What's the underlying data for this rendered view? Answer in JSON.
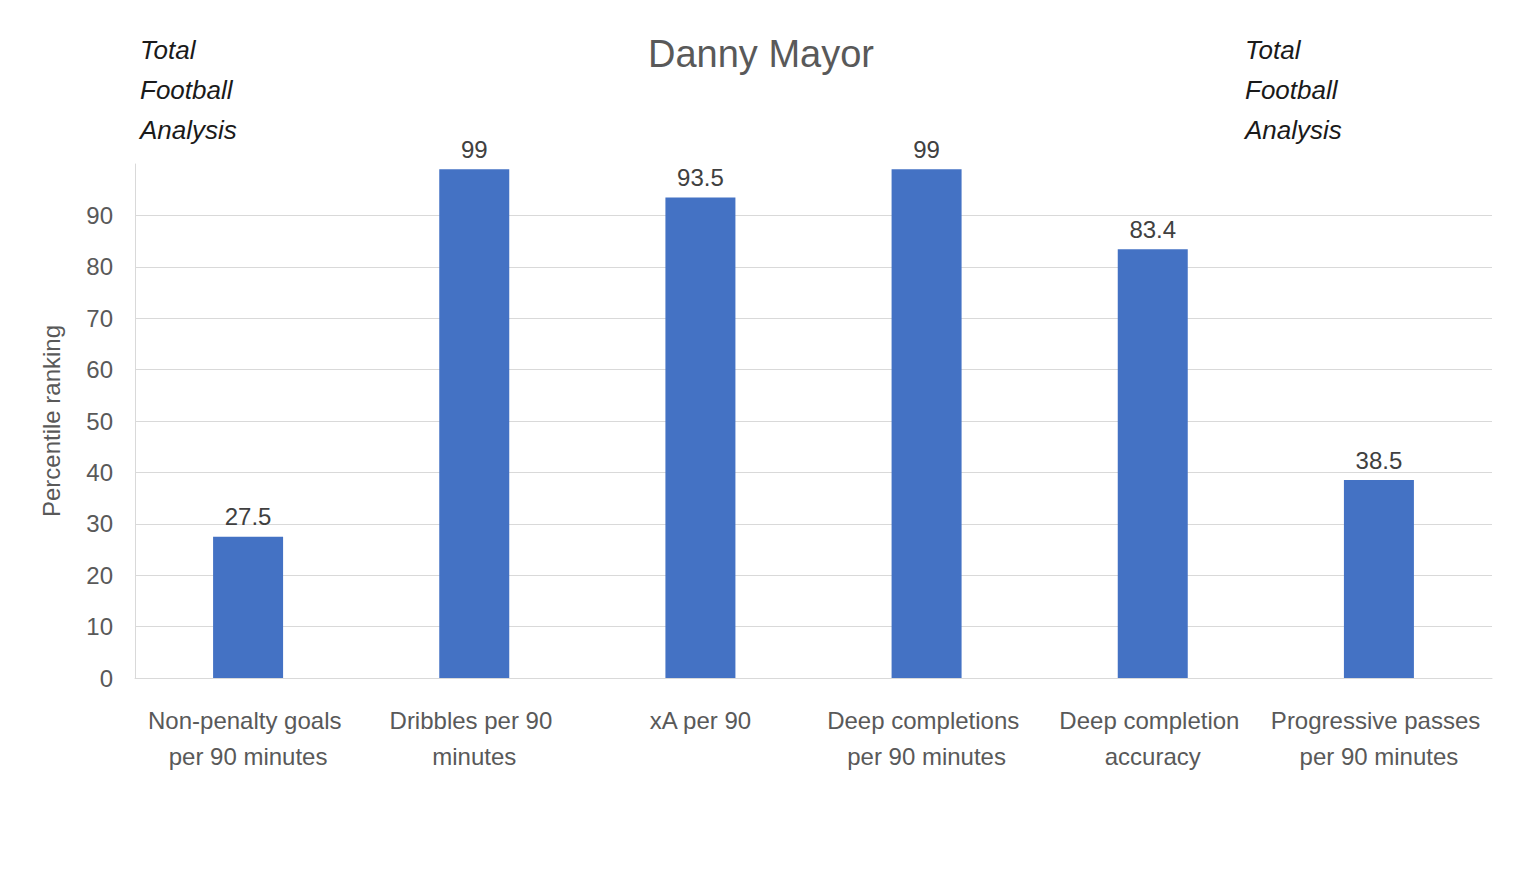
{
  "chart_data": {
    "type": "bar",
    "title": "Danny Mayor",
    "y_label": "Percentile ranking",
    "annotations": [
      "Total Football Analysis",
      "Total Football Analysis"
    ],
    "categories": [
      "Non-penalty goals per 90 minutes",
      "Dribbles per 90 minutes",
      "xA per 90",
      "Deep completions per 90 minutes",
      "Deep completion accuracy",
      "Progressive passes per 90 minutes"
    ],
    "values": [
      27.5,
      99,
      93.5,
      99,
      83.4,
      38.5
    ],
    "color": "#4472c4",
    "ylim": [
      0,
      100
    ],
    "yticks": [
      0,
      10,
      20,
      30,
      40,
      50,
      60,
      70,
      80,
      90
    ],
    "grid": true,
    "data_labels": true
  }
}
